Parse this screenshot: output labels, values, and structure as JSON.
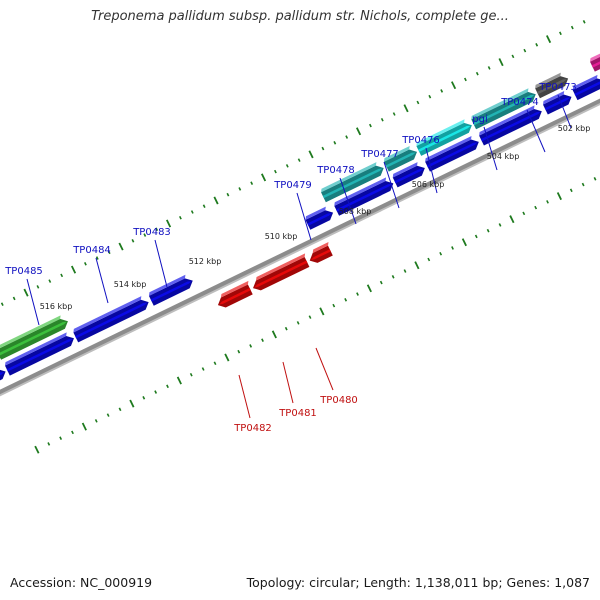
{
  "title": "Treponema pallidum subsp. pallidum str. Nichols, complete ge...",
  "accession": "Accession: NC_000919",
  "stats": "Topology: circular; Length: 1,138,011 bp; Genes: 1,087",
  "colors": {
    "forward_gene": "#0a0ae6",
    "reverse_gene": "#e60a0a",
    "highlight_green": "#3cc03c",
    "highlight_teal": "#22b4b4",
    "highlight_cyan": "#19e6e6",
    "highlight_grey": "#606060",
    "highlight_magenta": "#e61e96",
    "backbone": "#8c8c8c",
    "ticks": "#1e7a1e",
    "label_forward": "#1010c0",
    "label_reverse": "#c01010"
  },
  "kbp_labels": [
    "502 kbp",
    "504 kbp",
    "506 kbp",
    "508 kbp",
    "510 kbp",
    "512 kbp",
    "514 kbp",
    "516 kbp"
  ],
  "forward_labels": [
    "TP0473",
    "TP0474",
    "pgi",
    "TP0476",
    "TP0477",
    "TP0478",
    "TP0479",
    "TP0483",
    "TP0484",
    "TP0485"
  ],
  "reverse_labels": [
    "TP0480",
    "TP0481",
    "TP0482"
  ]
}
